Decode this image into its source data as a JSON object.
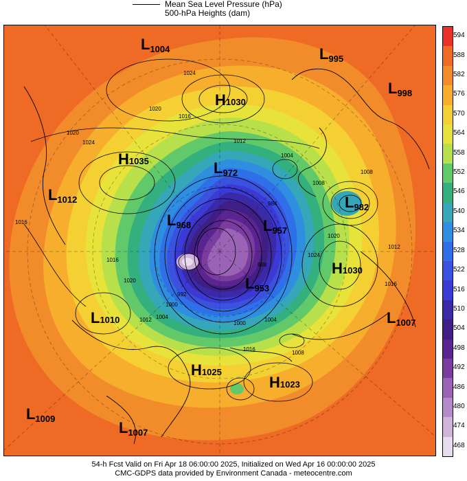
{
  "legend": {
    "line1": "Mean Sea Level Pressure (hPa)",
    "line2": "500-hPa Heights (dam)"
  },
  "colorbar": {
    "ticks": [
      "594",
      "588",
      "582",
      "576",
      "570",
      "564",
      "558",
      "552",
      "546",
      "540",
      "534",
      "528",
      "522",
      "516",
      "510",
      "504",
      "498",
      "492",
      "486",
      "480",
      "474",
      "468"
    ],
    "colors": [
      "#e8322a",
      "#ee6a25",
      "#f28c2a",
      "#f7ae2c",
      "#f5d033",
      "#e8e33a",
      "#b8e04a",
      "#62c96a",
      "#34b07e",
      "#35a7b9",
      "#2f8ee0",
      "#2f6fe8",
      "#3a52de",
      "#3b3ad4",
      "#3a2aa8",
      "#3f1f86",
      "#5a2590",
      "#7a3c9e",
      "#9a63b5",
      "#b58ac8",
      "#cfb3db",
      "#e8dcef"
    ]
  },
  "centers": [
    {
      "type": "L",
      "value": "1004"
    },
    {
      "type": "L",
      "value": "995"
    },
    {
      "type": "H",
      "value": "1030"
    },
    {
      "type": "L",
      "value": "998"
    },
    {
      "type": "H",
      "value": "1035"
    },
    {
      "type": "L",
      "value": "972"
    },
    {
      "type": "L",
      "value": "1012"
    },
    {
      "type": "L",
      "value": "982"
    },
    {
      "type": "L",
      "value": "968"
    },
    {
      "type": "L",
      "value": "957"
    },
    {
      "type": "H",
      "value": "1030"
    },
    {
      "type": "L",
      "value": "953"
    },
    {
      "type": "L",
      "value": "1010"
    },
    {
      "type": "L",
      "value": "1007"
    },
    {
      "type": "H",
      "value": "1025"
    },
    {
      "type": "H",
      "value": "1023"
    },
    {
      "type": "L",
      "value": "1009"
    },
    {
      "type": "L",
      "value": "1007"
    }
  ],
  "isobar_labels": [
    "1024",
    "1020",
    "1016",
    "1020",
    "1024",
    "1012",
    "1004",
    "1008",
    "1008",
    "1020",
    "1024",
    "1012",
    "1016",
    "1020",
    "1016",
    "1012",
    "1000",
    "1004",
    "1008",
    "1016",
    "1016",
    "1000",
    "1004",
    "992",
    "988",
    "984"
  ],
  "footer": {
    "line1": "54-h Fcst Valid on Fri Apr 18 06:00:00 2025, Initialized on Wed Apr 16 00:00:00 2025",
    "line2": "CMC-GDPS data provided by Environment Canada - meteocentre.com"
  }
}
